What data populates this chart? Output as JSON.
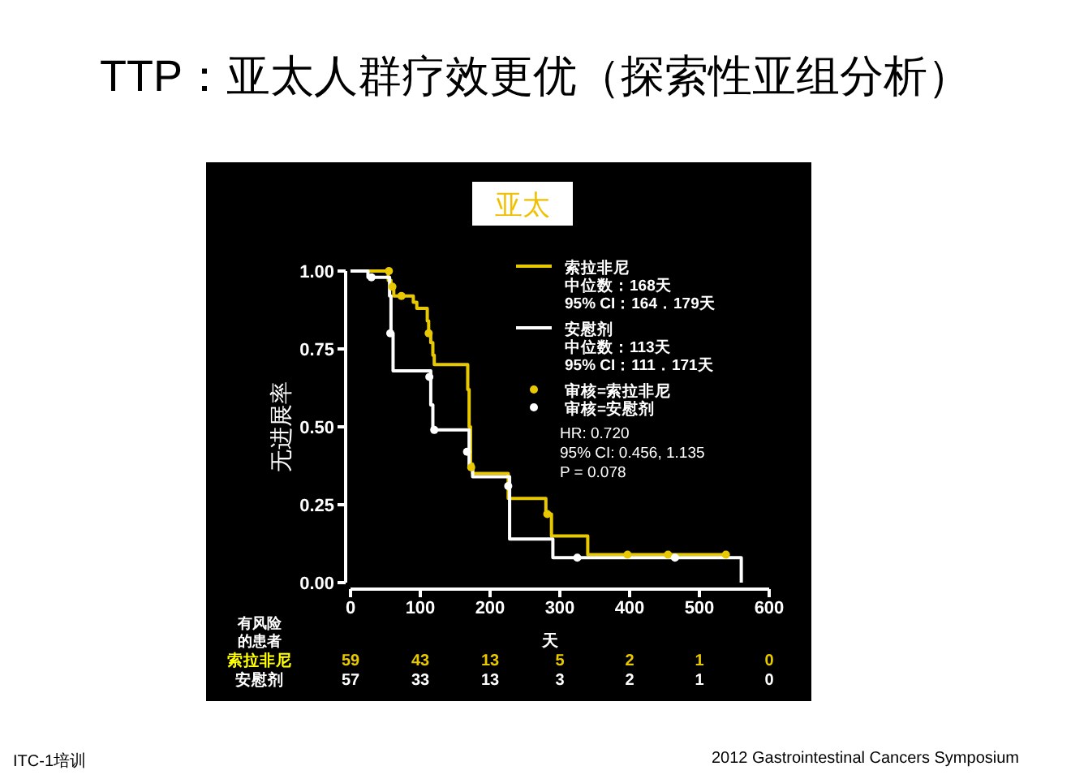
{
  "chart_data": {
    "type": "step",
    "title": "TTP：亚太人群疗效更优（探索性亚组分析）",
    "subtitle": "亚太",
    "xlabel": "天",
    "ylabel": "无进展率",
    "xlim": [
      0,
      600
    ],
    "xticks": [
      0,
      100,
      200,
      300,
      400,
      500,
      600
    ],
    "ylim": [
      0,
      1
    ],
    "yticks": [
      {
        "value": 0,
        "label": "0.00"
      },
      {
        "value": 0.25,
        "label": "0.25"
      },
      {
        "value": 0.5,
        "label": "0.50"
      },
      {
        "value": 0.75,
        "label": "0.75"
      },
      {
        "value": 1,
        "label": "1.00"
      }
    ],
    "legend": "top right",
    "series": [
      {
        "name": "索拉非尼",
        "color": "#e8c800",
        "x": [
          0,
          54,
          58,
          62,
          90,
          95,
          110,
          112,
          115,
          118,
          120,
          168,
          170,
          172,
          175,
          226,
          280,
          288,
          340,
          540
        ],
        "values": [
          1,
          0.97,
          0.95,
          0.92,
          0.9,
          0.88,
          0.84,
          0.8,
          0.77,
          0.73,
          0.7,
          0.62,
          0.5,
          0.38,
          0.35,
          0.27,
          0.22,
          0.15,
          0.09,
          0.09
        ]
      },
      {
        "name": "安慰剂",
        "color": "#ffffff",
        "x": [
          0,
          25,
          56,
          58,
          61,
          115,
          118,
          170,
          175,
          228,
          290,
          560
        ],
        "values": [
          1,
          0.98,
          0.92,
          0.8,
          0.68,
          0.57,
          0.49,
          0.37,
          0.34,
          0.14,
          0.08,
          0
        ]
      },
      {
        "name": "审核=索拉非尼",
        "type": "scatter",
        "marker": "circle",
        "color": "#e8c800",
        "x": [
          55,
          60,
          73,
          112,
          173,
          282,
          397,
          455,
          538
        ],
        "values": [
          1,
          0.95,
          0.92,
          0.8,
          0.37,
          0.22,
          0.09,
          0.09,
          0.09
        ]
      },
      {
        "name": "审核=安慰剂",
        "type": "scatter",
        "marker": "circle",
        "color": "#ffffff",
        "x": [
          30,
          57,
          113,
          120,
          167,
          226,
          325,
          465
        ],
        "values": [
          0.98,
          0.8,
          0.66,
          0.49,
          0.42,
          0.31,
          0.08,
          0.08
        ]
      }
    ],
    "annotations": [
      "中位数：168天",
      "95% CI：164．179天",
      "中位数：113天",
      "95% CI：111．171天",
      "HR: 0.720",
      "95% CI: 0.456, 1.135",
      "P = 0.078",
      "有风险的患者",
      "59",
      "43",
      "13",
      "5",
      "2",
      "1",
      "0",
      "57",
      "33",
      "13",
      "3",
      "2",
      "1",
      "0",
      "ITC-1培训",
      "2012 Gastrointestinal Cancers Symposium"
    ]
  }
}
